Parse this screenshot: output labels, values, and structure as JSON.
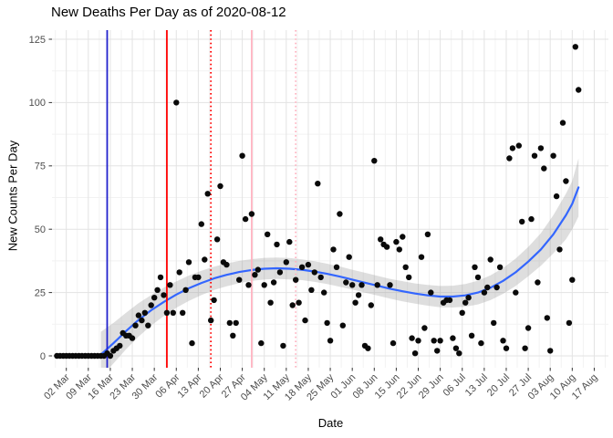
{
  "title": "New Deaths Per Day as of 2020-08-12",
  "x_axis": {
    "label": "Date",
    "tick_dates": [
      "2020-03-02",
      "2020-03-09",
      "2020-03-16",
      "2020-03-23",
      "2020-03-30",
      "2020-04-06",
      "2020-04-13",
      "2020-04-20",
      "2020-04-27",
      "2020-05-04",
      "2020-05-11",
      "2020-05-18",
      "2020-05-25",
      "2020-06-01",
      "2020-06-08",
      "2020-06-15",
      "2020-06-22",
      "2020-06-29",
      "2020-07-06",
      "2020-07-13",
      "2020-07-20",
      "2020-07-27",
      "2020-08-03",
      "2020-08-10",
      "2020-08-17"
    ],
    "tick_labels": [
      "02 Mar",
      "09 Mar",
      "16 Mar",
      "23 Mar",
      "30 Mar",
      "06 Apr",
      "13 Apr",
      "20 Apr",
      "27 Apr",
      "04 May",
      "11 May",
      "18 May",
      "25 May",
      "01 Jun",
      "08 Jun",
      "15 Jun",
      "22 Jun",
      "29 Jun",
      "06 Jul",
      "13 Jul",
      "20 Jul",
      "27 Jul",
      "03 Aug",
      "10 Aug",
      "17 Aug"
    ]
  },
  "y_axis": {
    "label": "New Counts Per Day",
    "ticks": [
      0,
      25,
      50,
      75,
      100,
      125
    ],
    "minor_ticks": [
      12.5,
      37.5,
      62.5,
      87.5,
      112.5
    ]
  },
  "chart_data": {
    "type": "scatter",
    "title": "New Deaths Per Day as of 2020-08-12",
    "xlabel": "Date",
    "ylabel": "New Counts Per Day",
    "ylim": [
      0,
      125
    ],
    "xlim_dates": [
      "2020-02-26",
      "2020-08-21"
    ],
    "grid": true,
    "legend": "none",
    "point_color": "#0a0a0a",
    "points": [
      [
        "2020-02-28",
        0
      ],
      [
        "2020-02-29",
        0
      ],
      [
        "2020-03-01",
        0
      ],
      [
        "2020-03-02",
        0
      ],
      [
        "2020-03-03",
        0
      ],
      [
        "2020-03-04",
        0
      ],
      [
        "2020-03-05",
        0
      ],
      [
        "2020-03-06",
        0
      ],
      [
        "2020-03-07",
        0
      ],
      [
        "2020-03-08",
        0
      ],
      [
        "2020-03-09",
        0
      ],
      [
        "2020-03-10",
        0
      ],
      [
        "2020-03-11",
        0
      ],
      [
        "2020-03-12",
        0
      ],
      [
        "2020-03-13",
        0
      ],
      [
        "2020-03-14",
        0
      ],
      [
        "2020-03-15",
        1
      ],
      [
        "2020-03-16",
        0
      ],
      [
        "2020-03-17",
        2
      ],
      [
        "2020-03-18",
        3
      ],
      [
        "2020-03-19",
        4
      ],
      [
        "2020-03-20",
        9
      ],
      [
        "2020-03-21",
        8
      ],
      [
        "2020-03-22",
        8
      ],
      [
        "2020-03-23",
        7
      ],
      [
        "2020-03-24",
        12
      ],
      [
        "2020-03-25",
        16
      ],
      [
        "2020-03-26",
        14
      ],
      [
        "2020-03-27",
        17
      ],
      [
        "2020-03-28",
        12
      ],
      [
        "2020-03-29",
        20
      ],
      [
        "2020-03-30",
        23
      ],
      [
        "2020-03-31",
        26
      ],
      [
        "2020-04-01",
        31
      ],
      [
        "2020-04-02",
        24
      ],
      [
        "2020-04-03",
        17
      ],
      [
        "2020-04-04",
        28
      ],
      [
        "2020-04-05",
        17
      ],
      [
        "2020-04-06",
        100
      ],
      [
        "2020-04-07",
        33
      ],
      [
        "2020-04-08",
        17
      ],
      [
        "2020-04-09",
        26
      ],
      [
        "2020-04-10",
        37
      ],
      [
        "2020-04-11",
        5
      ],
      [
        "2020-04-12",
        31
      ],
      [
        "2020-04-13",
        31
      ],
      [
        "2020-04-14",
        52
      ],
      [
        "2020-04-15",
        38
      ],
      [
        "2020-04-16",
        64
      ],
      [
        "2020-04-17",
        14
      ],
      [
        "2020-04-18",
        22
      ],
      [
        "2020-04-19",
        46
      ],
      [
        "2020-04-20",
        67
      ],
      [
        "2020-04-21",
        37
      ],
      [
        "2020-04-22",
        36
      ],
      [
        "2020-04-23",
        13
      ],
      [
        "2020-04-24",
        8
      ],
      [
        "2020-04-25",
        13
      ],
      [
        "2020-04-26",
        30
      ],
      [
        "2020-04-27",
        79
      ],
      [
        "2020-04-28",
        54
      ],
      [
        "2020-04-29",
        28
      ],
      [
        "2020-04-30",
        56
      ],
      [
        "2020-05-01",
        32
      ],
      [
        "2020-05-02",
        34
      ],
      [
        "2020-05-03",
        5
      ],
      [
        "2020-05-04",
        28
      ],
      [
        "2020-05-05",
        48
      ],
      [
        "2020-05-06",
        21
      ],
      [
        "2020-05-07",
        29
      ],
      [
        "2020-05-08",
        44
      ],
      [
        "2020-05-09",
        33
      ],
      [
        "2020-05-10",
        4
      ],
      [
        "2020-05-11",
        37
      ],
      [
        "2020-05-12",
        45
      ],
      [
        "2020-05-13",
        20
      ],
      [
        "2020-05-14",
        30
      ],
      [
        "2020-05-15",
        21
      ],
      [
        "2020-05-16",
        35
      ],
      [
        "2020-05-17",
        14
      ],
      [
        "2020-05-18",
        36
      ],
      [
        "2020-05-19",
        26
      ],
      [
        "2020-05-20",
        33
      ],
      [
        "2020-05-21",
        68
      ],
      [
        "2020-05-22",
        31
      ],
      [
        "2020-05-23",
        25
      ],
      [
        "2020-05-24",
        13
      ],
      [
        "2020-05-25",
        6
      ],
      [
        "2020-05-26",
        42
      ],
      [
        "2020-05-27",
        35
      ],
      [
        "2020-05-28",
        56
      ],
      [
        "2020-05-29",
        12
      ],
      [
        "2020-05-30",
        29
      ],
      [
        "2020-05-31",
        39
      ],
      [
        "2020-06-01",
        28
      ],
      [
        "2020-06-02",
        21
      ],
      [
        "2020-06-03",
        24
      ],
      [
        "2020-06-04",
        28
      ],
      [
        "2020-06-05",
        4
      ],
      [
        "2020-06-06",
        3
      ],
      [
        "2020-06-07",
        20
      ],
      [
        "2020-06-08",
        77
      ],
      [
        "2020-06-09",
        28
      ],
      [
        "2020-06-10",
        46
      ],
      [
        "2020-06-11",
        44
      ],
      [
        "2020-06-12",
        43
      ],
      [
        "2020-06-13",
        28
      ],
      [
        "2020-06-14",
        5
      ],
      [
        "2020-06-15",
        45
      ],
      [
        "2020-06-16",
        42
      ],
      [
        "2020-06-17",
        47
      ],
      [
        "2020-06-18",
        35
      ],
      [
        "2020-06-19",
        31
      ],
      [
        "2020-06-20",
        7
      ],
      [
        "2020-06-21",
        1
      ],
      [
        "2020-06-22",
        6
      ],
      [
        "2020-06-23",
        39
      ],
      [
        "2020-06-24",
        11
      ],
      [
        "2020-06-25",
        48
      ],
      [
        "2020-06-26",
        25
      ],
      [
        "2020-06-27",
        6
      ],
      [
        "2020-06-28",
        2
      ],
      [
        "2020-06-29",
        6
      ],
      [
        "2020-06-30",
        21
      ],
      [
        "2020-07-01",
        22
      ],
      [
        "2020-07-02",
        22
      ],
      [
        "2020-07-03",
        7
      ],
      [
        "2020-07-04",
        3
      ],
      [
        "2020-07-05",
        1
      ],
      [
        "2020-07-06",
        17
      ],
      [
        "2020-07-07",
        21
      ],
      [
        "2020-07-08",
        23
      ],
      [
        "2020-07-09",
        8
      ],
      [
        "2020-07-10",
        35
      ],
      [
        "2020-07-11",
        31
      ],
      [
        "2020-07-12",
        5
      ],
      [
        "2020-07-13",
        25
      ],
      [
        "2020-07-14",
        27
      ],
      [
        "2020-07-15",
        38
      ],
      [
        "2020-07-16",
        13
      ],
      [
        "2020-07-17",
        27
      ],
      [
        "2020-07-18",
        35
      ],
      [
        "2020-07-19",
        6
      ],
      [
        "2020-07-20",
        3
      ],
      [
        "2020-07-21",
        78
      ],
      [
        "2020-07-22",
        82
      ],
      [
        "2020-07-23",
        25
      ],
      [
        "2020-07-24",
        83
      ],
      [
        "2020-07-25",
        53
      ],
      [
        "2020-07-26",
        3
      ],
      [
        "2020-07-27",
        11
      ],
      [
        "2020-07-28",
        54
      ],
      [
        "2020-07-29",
        79
      ],
      [
        "2020-07-30",
        29
      ],
      [
        "2020-07-31",
        82
      ],
      [
        "2020-08-01",
        74
      ],
      [
        "2020-08-02",
        15
      ],
      [
        "2020-08-03",
        2
      ],
      [
        "2020-08-04",
        79
      ],
      [
        "2020-08-05",
        63
      ],
      [
        "2020-08-06",
        42
      ],
      [
        "2020-08-07",
        92
      ],
      [
        "2020-08-08",
        69
      ],
      [
        "2020-08-09",
        13
      ],
      [
        "2020-08-10",
        30
      ],
      [
        "2020-08-11",
        122
      ],
      [
        "2020-08-12",
        105
      ]
    ],
    "smooth": {
      "name": "loess fit",
      "color": "#3366FF",
      "points": [
        [
          "2020-03-13",
          0.5
        ],
        [
          "2020-03-17",
          5
        ],
        [
          "2020-03-21",
          9.8
        ],
        [
          "2020-03-25",
          14.2
        ],
        [
          "2020-03-29",
          18
        ],
        [
          "2020-04-02",
          21.3
        ],
        [
          "2020-04-06",
          24.2
        ],
        [
          "2020-04-10",
          26.7
        ],
        [
          "2020-04-14",
          28.8
        ],
        [
          "2020-04-18",
          30.6
        ],
        [
          "2020-04-22",
          32
        ],
        [
          "2020-04-26",
          33.1
        ],
        [
          "2020-04-30",
          33.9
        ],
        [
          "2020-05-04",
          34.4
        ],
        [
          "2020-05-08",
          34.6
        ],
        [
          "2020-05-12",
          34.4
        ],
        [
          "2020-05-16",
          34
        ],
        [
          "2020-05-20",
          33.3
        ],
        [
          "2020-05-24",
          32.4
        ],
        [
          "2020-05-28",
          31.3
        ],
        [
          "2020-06-01",
          30.1
        ],
        [
          "2020-06-05",
          28.9
        ],
        [
          "2020-06-09",
          27.7
        ],
        [
          "2020-06-13",
          26.5
        ],
        [
          "2020-06-17",
          25.5
        ],
        [
          "2020-06-21",
          24.6
        ],
        [
          "2020-06-25",
          23.9
        ],
        [
          "2020-06-29",
          23.4
        ],
        [
          "2020-07-03",
          23.4
        ],
        [
          "2020-07-07",
          23.9
        ],
        [
          "2020-07-11",
          25
        ],
        [
          "2020-07-15",
          26.9
        ],
        [
          "2020-07-19",
          29.6
        ],
        [
          "2020-07-23",
          33
        ],
        [
          "2020-07-27",
          37.2
        ],
        [
          "2020-07-31",
          42
        ],
        [
          "2020-08-04",
          48
        ],
        [
          "2020-08-08",
          55.5
        ],
        [
          "2020-08-10",
          60
        ],
        [
          "2020-08-12",
          66.5
        ]
      ]
    },
    "ribbon": {
      "color": "#999999",
      "opacity": 0.32,
      "points": [
        [
          "2020-03-13",
          -8.5,
          9.5
        ],
        [
          "2020-03-17",
          -3,
          13
        ],
        [
          "2020-03-21",
          2.6,
          17
        ],
        [
          "2020-03-25",
          7.6,
          20.8
        ],
        [
          "2020-03-29",
          12,
          24
        ],
        [
          "2020-04-02",
          15.7,
          26.9
        ],
        [
          "2020-04-06",
          19,
          29.4
        ],
        [
          "2020-04-10",
          21.7,
          31.7
        ],
        [
          "2020-04-14",
          24,
          33.6
        ],
        [
          "2020-04-18",
          26,
          35.2
        ],
        [
          "2020-04-22",
          27.5,
          36.5
        ],
        [
          "2020-04-26",
          28.7,
          37.5
        ],
        [
          "2020-04-30",
          29.6,
          38.2
        ],
        [
          "2020-05-04",
          30.1,
          38.7
        ],
        [
          "2020-05-08",
          30.4,
          38.8
        ],
        [
          "2020-05-12",
          30.2,
          38.6
        ],
        [
          "2020-05-16",
          29.9,
          38.1
        ],
        [
          "2020-05-20",
          29.2,
          37.4
        ],
        [
          "2020-05-24",
          28.4,
          36.4
        ],
        [
          "2020-05-28",
          27.3,
          35.3
        ],
        [
          "2020-06-01",
          26.2,
          34
        ],
        [
          "2020-06-05",
          25,
          32.8
        ],
        [
          "2020-06-09",
          23.8,
          31.6
        ],
        [
          "2020-06-13",
          22.6,
          30.4
        ],
        [
          "2020-06-17",
          21.5,
          29.5
        ],
        [
          "2020-06-21",
          20.6,
          28.6
        ],
        [
          "2020-06-25",
          19.8,
          28
        ],
        [
          "2020-06-29",
          19.2,
          27.6
        ],
        [
          "2020-07-03",
          19.1,
          27.7
        ],
        [
          "2020-07-07",
          19.4,
          28.4
        ],
        [
          "2020-07-11",
          20.3,
          29.7
        ],
        [
          "2020-07-15",
          22,
          31.8
        ],
        [
          "2020-07-19",
          24.5,
          34.7
        ],
        [
          "2020-07-23",
          27.6,
          38.4
        ],
        [
          "2020-07-27",
          31.4,
          43
        ],
        [
          "2020-07-31",
          35.6,
          48.4
        ],
        [
          "2020-08-04",
          40.5,
          55.5
        ],
        [
          "2020-08-08",
          46,
          64
        ],
        [
          "2020-08-10",
          50,
          69
        ],
        [
          "2020-08-12",
          55,
          78
        ]
      ]
    },
    "vlines": [
      {
        "date": "2020-03-15",
        "color": "#2222cc",
        "style": "solid"
      },
      {
        "date": "2020-04-03",
        "color": "#ff0000",
        "style": "solid"
      },
      {
        "date": "2020-04-17",
        "color": "#ff0000",
        "style": "dotted"
      },
      {
        "date": "2020-04-30",
        "color": "#ffb3c1",
        "style": "solid"
      },
      {
        "date": "2020-05-14",
        "color": "#ffb3c1",
        "style": "dotted"
      }
    ]
  }
}
